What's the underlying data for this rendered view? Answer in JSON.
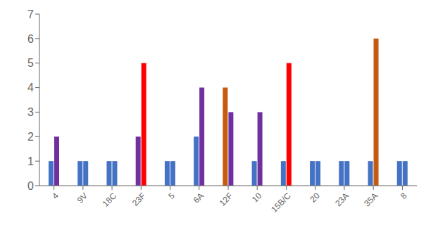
{
  "chart_data": {
    "type": "bar",
    "categories": [
      "4",
      "9V",
      "18C",
      "23F",
      "5",
      "6A",
      "12F",
      "10",
      "15B/C",
      "20",
      "23A",
      "35A",
      "8"
    ],
    "series": [
      {
        "values": [
          1,
          1,
          1,
          2,
          1,
          2,
          4,
          1,
          1,
          1,
          1,
          1,
          1
        ],
        "colors": [
          "#4472C4",
          "#4472C4",
          "#4472C4",
          "#7030A0",
          "#4472C4",
          "#4472C4",
          "#C55A11",
          "#4472C4",
          "#4472C4",
          "#4472C4",
          "#4472C4",
          "#4472C4",
          "#4472C4"
        ]
      },
      {
        "values": [
          2,
          1,
          1,
          5,
          1,
          4,
          3,
          3,
          5,
          1,
          1,
          6,
          1
        ],
        "colors": [
          "#7030A0",
          "#4472C4",
          "#4472C4",
          "#FF0000",
          "#4472C4",
          "#7030A0",
          "#7030A0",
          "#7030A0",
          "#FF0000",
          "#4472C4",
          "#4472C4",
          "#C55A11",
          "#4472C4"
        ]
      }
    ],
    "ylim": [
      0,
      7
    ],
    "yticks": [
      0,
      1,
      2,
      3,
      4,
      5,
      6,
      7
    ],
    "grid": false
  }
}
